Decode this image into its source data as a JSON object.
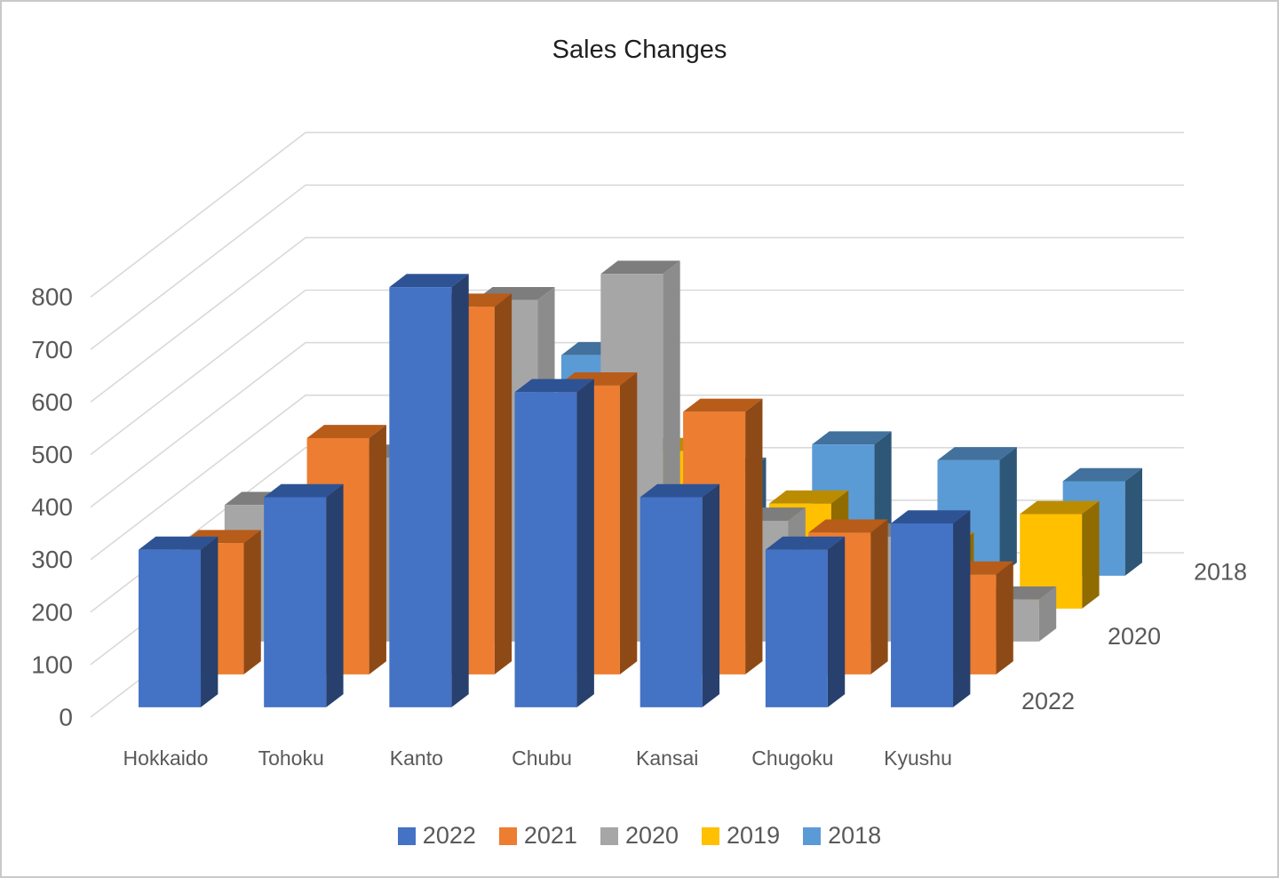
{
  "title": "Sales Changes",
  "chart_data": {
    "type": "bar",
    "subtype": "3d-column",
    "title": "Sales Changes",
    "categories": [
      "Hokkaido",
      "Tohoku",
      "Kanto",
      "Chubu",
      "Kansai",
      "Chugoku",
      "Kyushu"
    ],
    "series": [
      {
        "name": "2022",
        "color": "#4472C4",
        "top_color": "#2E5395",
        "side_color": "#27406E",
        "values": [
          300,
          400,
          800,
          600,
          400,
          300,
          350
        ]
      },
      {
        "name": "2021",
        "color": "#ED7D31",
        "top_color": "#B85C1A",
        "side_color": "#8E4A16",
        "values": [
          250,
          450,
          700,
          550,
          500,
          270,
          190
        ]
      },
      {
        "name": "2020",
        "color": "#A6A6A6",
        "top_color": "#7D7D7D",
        "side_color": "#8C8C8C",
        "values": [
          260,
          350,
          650,
          700,
          230,
          200,
          80
        ]
      },
      {
        "name": "2019",
        "color": "#FFC000",
        "top_color": "#BC8C00",
        "side_color": "#8F6B00",
        "values": [
          150,
          250,
          350,
          300,
          200,
          120,
          180
        ]
      },
      {
        "name": "2018",
        "color": "#5B9BD5",
        "top_color": "#41719C",
        "side_color": "#2E5777",
        "values": [
          220,
          300,
          420,
          200,
          250,
          220,
          180
        ]
      }
    ],
    "xlabel": "",
    "ylabel": "",
    "ylim": [
      0,
      800
    ],
    "yticks": [
      0,
      100,
      200,
      300,
      400,
      500,
      600,
      700,
      800
    ],
    "depth_axis_labels": [
      "2022",
      "2020",
      "2018"
    ],
    "grid": true,
    "legend_position": "bottom",
    "text_color": "#595959",
    "gridline_color": "#D9D9D9"
  }
}
